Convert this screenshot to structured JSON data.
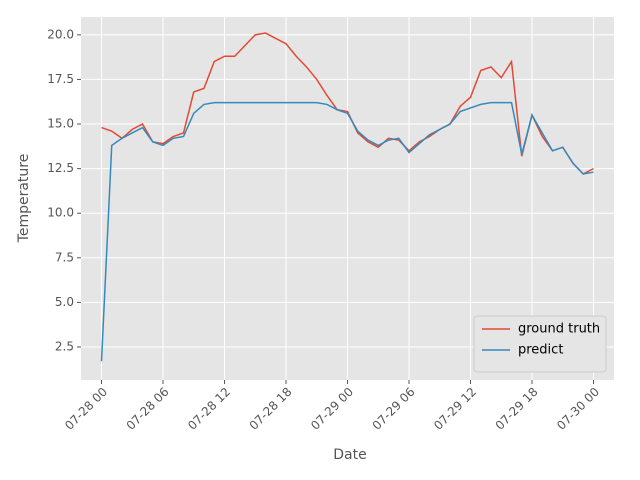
{
  "chart_data": {
    "type": "line",
    "xlabel": "Date",
    "ylabel": "Temperature",
    "x": [
      "07-28 00",
      "07-28 01",
      "07-28 02",
      "07-28 03",
      "07-28 04",
      "07-28 05",
      "07-28 06",
      "07-28 07",
      "07-28 08",
      "07-28 09",
      "07-28 10",
      "07-28 11",
      "07-28 12",
      "07-28 13",
      "07-28 14",
      "07-28 15",
      "07-28 16",
      "07-28 17",
      "07-28 18",
      "07-28 19",
      "07-28 20",
      "07-28 21",
      "07-28 22",
      "07-28 23",
      "07-29 00",
      "07-29 01",
      "07-29 02",
      "07-29 03",
      "07-29 04",
      "07-29 05",
      "07-29 06",
      "07-29 07",
      "07-29 08",
      "07-29 09",
      "07-29 10",
      "07-29 11",
      "07-29 12",
      "07-29 13",
      "07-29 14",
      "07-29 15",
      "07-29 16",
      "07-29 17",
      "07-29 18",
      "07-29 19",
      "07-29 20",
      "07-29 21",
      "07-29 22",
      "07-29 23",
      "07-30 00"
    ],
    "series": [
      {
        "name": "ground truth",
        "color": "#E24A33",
        "values": [
          14.8,
          14.6,
          14.2,
          14.7,
          15.0,
          14.0,
          13.9,
          14.3,
          14.5,
          16.8,
          17.0,
          18.5,
          18.8,
          18.8,
          19.4,
          20.0,
          20.1,
          19.8,
          19.5,
          18.8,
          18.2,
          17.5,
          16.6,
          15.8,
          15.7,
          14.5,
          14.0,
          13.7,
          14.2,
          14.1,
          13.5,
          14.0,
          14.3,
          14.7,
          15.0,
          16.0,
          16.5,
          18.0,
          18.2,
          17.6,
          18.5,
          13.2,
          15.5,
          14.3,
          13.5,
          13.7,
          12.8,
          12.2,
          12.5
        ]
      },
      {
        "name": "predict",
        "color": "#348ABD",
        "values": [
          1.7,
          13.8,
          14.2,
          14.5,
          14.8,
          14.0,
          13.8,
          14.2,
          14.3,
          15.6,
          16.1,
          16.2,
          16.2,
          16.2,
          16.2,
          16.2,
          16.2,
          16.2,
          16.2,
          16.2,
          16.2,
          16.2,
          16.1,
          15.8,
          15.6,
          14.6,
          14.1,
          13.8,
          14.1,
          14.2,
          13.4,
          13.9,
          14.4,
          14.7,
          15.0,
          15.7,
          15.9,
          16.1,
          16.2,
          16.2,
          16.2,
          13.3,
          15.5,
          14.5,
          13.5,
          13.7,
          12.8,
          12.2,
          12.3
        ]
      }
    ],
    "xlim": [
      "07-27 22",
      "07-30 02"
    ],
    "xticks": [
      "07-28 00",
      "07-28 06",
      "07-28 12",
      "07-28 18",
      "07-29 00",
      "07-29 06",
      "07-29 12",
      "07-29 18",
      "07-30 00"
    ],
    "ylim": [
      0.65,
      21.0
    ],
    "yticks": [
      2.5,
      {
        "value": 5,
        "label": "5.0"
      },
      7.5,
      {
        "value": 10,
        "label": "10.0"
      },
      12.5,
      {
        "value": 15,
        "label": "15.0"
      },
      17.5,
      {
        "value": 20,
        "label": "20.0"
      }
    ],
    "grid": true,
    "legend": "lower right"
  }
}
